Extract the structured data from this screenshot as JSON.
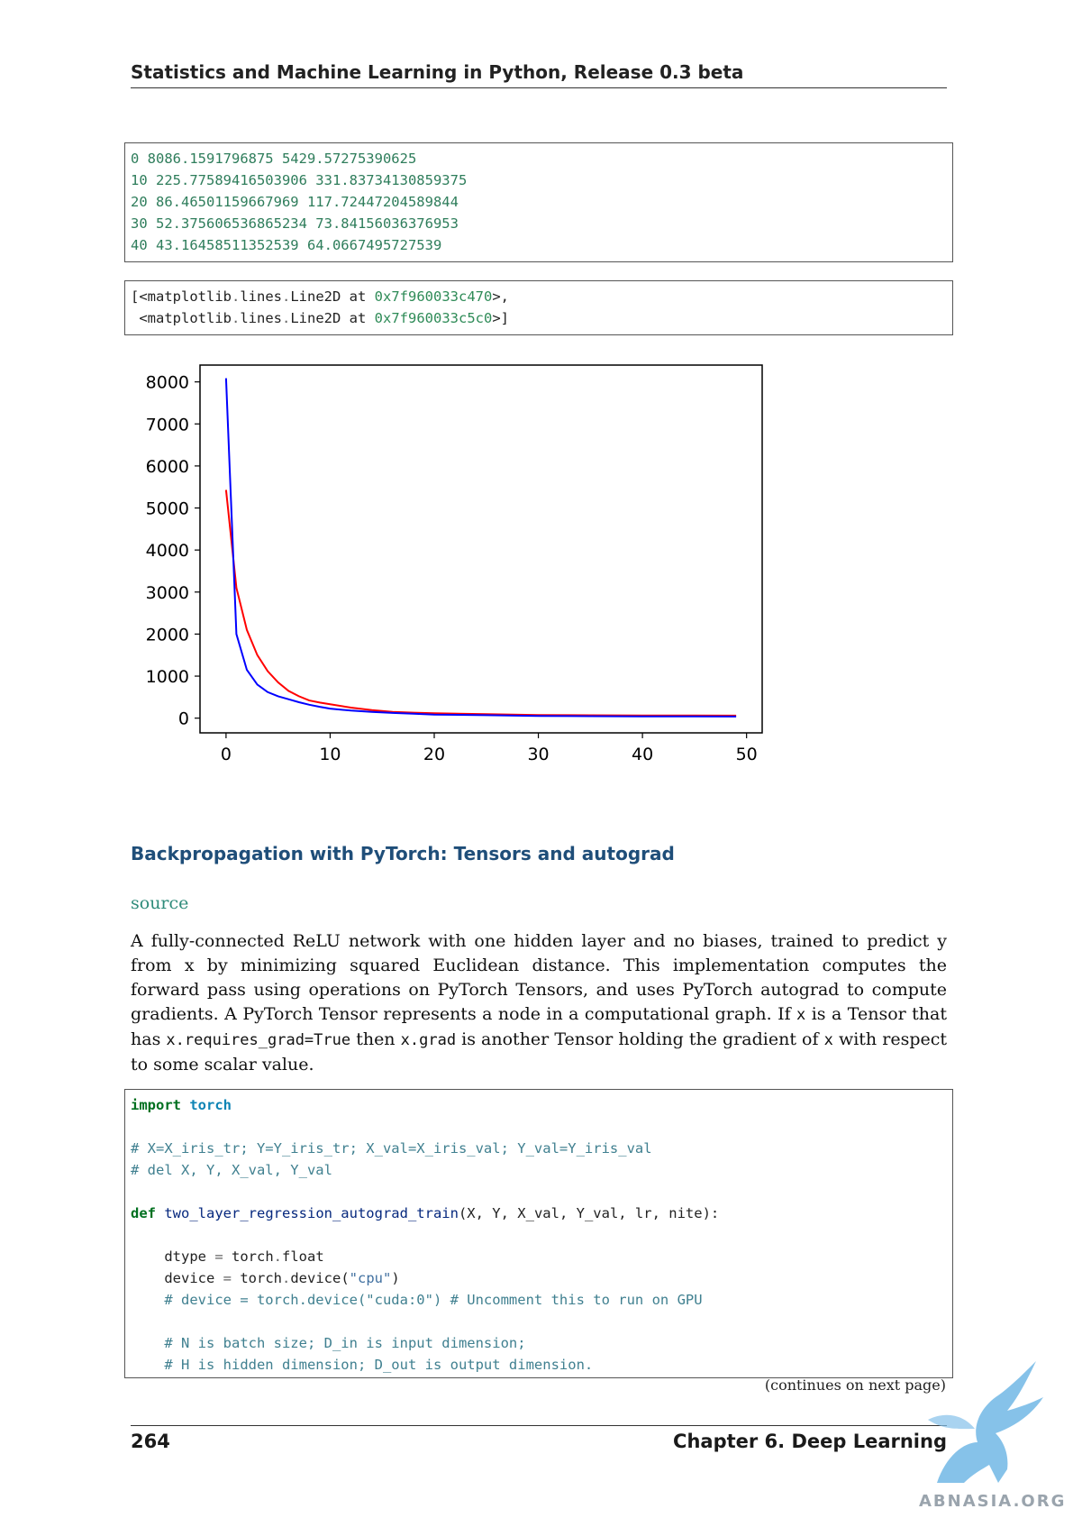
{
  "header": {
    "title": "Statistics and Machine Learning in Python, Release 0.3 beta"
  },
  "output_block": {
    "lines": [
      "0 8086.1591796875 5429.57275390625",
      "10 225.77589416503906 331.83734130859375",
      "20 86.46501159667969 117.72447204589844",
      "30 52.375606536865234 73.84156036376953",
      "40 43.16458511352539 64.0667495727539"
    ]
  },
  "repr_block": {
    "line1_prefix": "[<matplotlib",
    "line1_mid": "lines",
    "line1_rest": "Line2D at ",
    "line1_hex": "0x7f960033c470",
    "line1_end": ">,",
    "line2_prefix": " <matplotlib",
    "line2_mid": "lines",
    "line2_rest": "Line2D at ",
    "line2_hex": "0x7f960033c5c0",
    "line2_end": ">]"
  },
  "chart_data": {
    "type": "line",
    "title": "",
    "xlabel": "",
    "ylabel": "",
    "xlim": [
      -2.5,
      51.5
    ],
    "ylim": [
      -350,
      8400
    ],
    "x_ticks": [
      0,
      10,
      20,
      30,
      40,
      50
    ],
    "y_ticks": [
      0,
      1000,
      2000,
      3000,
      4000,
      5000,
      6000,
      7000,
      8000
    ],
    "grid": false,
    "series": [
      {
        "color": "#0000ff",
        "x": [
          0,
          1,
          2,
          3,
          4,
          5,
          6,
          7,
          8,
          9,
          10,
          12,
          14,
          16,
          18,
          20,
          25,
          30,
          35,
          40,
          45,
          49
        ],
        "values": [
          8086,
          2000,
          1150,
          800,
          620,
          520,
          450,
          380,
          320,
          270,
          226,
          180,
          150,
          125,
          105,
          86,
          70,
          52,
          47,
          43,
          40,
          38
        ]
      },
      {
        "color": "#ff0000",
        "x": [
          0,
          1,
          2,
          3,
          4,
          5,
          6,
          7,
          8,
          9,
          10,
          12,
          14,
          16,
          18,
          20,
          25,
          30,
          35,
          40,
          45,
          49
        ],
        "values": [
          5430,
          3100,
          2100,
          1500,
          1120,
          850,
          650,
          520,
          420,
          370,
          332,
          250,
          190,
          150,
          130,
          118,
          95,
          74,
          68,
          64,
          62,
          60
        ]
      }
    ]
  },
  "section": {
    "heading": "Backpropagation with PyTorch: Tensors and autograd"
  },
  "source_link": "source",
  "paragraph": {
    "p1": "A fully-connected ReLU network with one hidden layer and no biases, trained to predict y from x by minimizing squared Euclidean distance. This implementation computes the forward pass using operations on PyTorch Tensors, and uses PyTorch autograd to compute gradients. A PyTorch Tensor represents a node in a computational graph. If ",
    "c1": "x",
    "p2": " is a Tensor that has ",
    "c2": "x.requires_grad=True",
    "p3": " then ",
    "c3": "x.grad",
    "p4": " is another Tensor holding the gradient of ",
    "c4": "x",
    "p5": " with respect to some scalar value."
  },
  "code": {
    "import_kw": "import",
    "import_mod": "torch",
    "comment1": "# X=X_iris_tr; Y=Y_iris_tr; X_val=X_iris_val; Y_val=Y_iris_val",
    "comment2": "# del X, Y, X_val, Y_val",
    "def_kw": "def",
    "func_name": "two_layer_regression_autograd_train",
    "func_args": "(X, Y, X_val, Y_val, lr, nite):",
    "dtype_lhs": "    dtype ",
    "dtype_rhs": " torch",
    "dtype_attr": "float",
    "device_lhs": "    device ",
    "device_rhs": " torch",
    "device_call": "device(",
    "device_str": "\"cpu\"",
    "device_close": ")",
    "comment3": "    # device = torch.device(\"cuda:0\") # Uncomment this to run on GPU",
    "comment4": "    # N is batch size; D_in is input dimension;",
    "comment5": "    # H is hidden dimension; D_out is output dimension."
  },
  "continues": "(continues on next page)",
  "footer": {
    "page_number": "264",
    "chapter": "Chapter 6.  Deep Learning"
  },
  "watermark": {
    "text": "ABNASIA.ORG"
  }
}
